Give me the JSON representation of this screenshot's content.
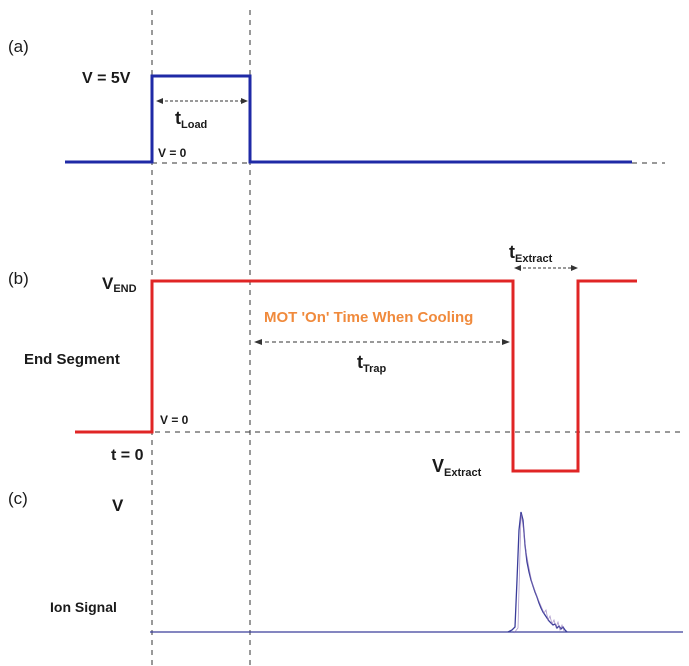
{
  "panels": {
    "a": "(a)",
    "b": "(b)",
    "c": "(c)"
  },
  "panel_a": {
    "v_high": "V = 5V",
    "v_zero": "V = 0",
    "t_load_main": "t",
    "t_load_sub": "Load"
  },
  "panel_b": {
    "v_end_main": "V",
    "v_end_sub": "END",
    "end_segment": "End Segment",
    "v_zero": "V = 0",
    "t_zero": "t = 0",
    "mot_label": "MOT 'On' Time When Cooling",
    "t_trap_main": "t",
    "t_trap_sub": "Trap",
    "t_extract_main": "t",
    "t_extract_sub": "Extract",
    "v_extract_main": "V",
    "v_extract_sub": "Extract"
  },
  "panel_c": {
    "v_axis": "V",
    "ion_signal": "Ion Signal"
  },
  "colors": {
    "load_trace": "#1f2aa6",
    "end_trace": "#e02525",
    "ion_trace": "#3a3d9a",
    "mot_text": "#f08a3c"
  }
}
